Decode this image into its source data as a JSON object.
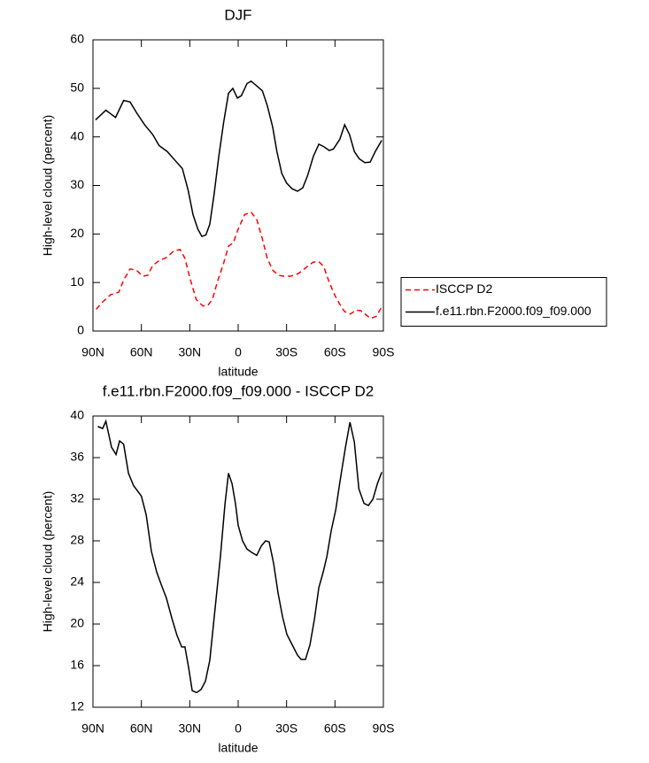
{
  "chart_data": [
    {
      "type": "line",
      "title": "DJF",
      "xlabel": "latitude",
      "ylabel": "High-level cloud (percent)",
      "xlim": [
        90,
        -90
      ],
      "ylim": [
        0,
        60
      ],
      "xticks": [
        {
          "value": 90,
          "label": "90N"
        },
        {
          "value": 60,
          "label": "60N"
        },
        {
          "value": 30,
          "label": "30N"
        },
        0,
        {
          "value": -30,
          "label": "30S"
        },
        {
          "value": -60,
          "label": "60S"
        },
        {
          "value": -90,
          "label": "90S"
        }
      ],
      "yticks": [
        0,
        10,
        20,
        30,
        40,
        50,
        60
      ],
      "legend": "right",
      "series": [
        {
          "name": "ISCCP D2",
          "color": "#ff0000",
          "style": "dashed",
          "x": [
            88,
            84,
            79,
            74,
            71,
            67,
            63,
            59,
            56,
            53,
            49,
            44,
            40,
            36,
            33,
            30,
            26,
            22,
            19,
            16,
            13,
            9,
            6,
            3,
            0,
            -4,
            -8,
            -11.5,
            -15,
            -18,
            -21.5,
            -25,
            -28,
            -32.5,
            -37,
            -40,
            -43.5,
            -46.6,
            -50,
            -53,
            -56.5,
            -60,
            -63,
            -66,
            -69.5,
            -73,
            -76,
            -79,
            -82,
            -85.5,
            -89
          ],
          "values": [
            4.5,
            6,
            7.5,
            8,
            10.5,
            12.8,
            12.5,
            11.3,
            11.5,
            13.5,
            14.5,
            15.2,
            16.5,
            16.8,
            15,
            11,
            6.5,
            5.2,
            5.2,
            6.5,
            10,
            14,
            17.5,
            18.2,
            21,
            24,
            24.5,
            23,
            19,
            15,
            12.5,
            11.5,
            11.3,
            11.3,
            11.8,
            12.5,
            13.5,
            14.2,
            14.3,
            13.3,
            10,
            7.3,
            5.5,
            4,
            3.5,
            4.3,
            4.2,
            3.4,
            2.6,
            3,
            5
          ]
        },
        {
          "name": "f.e11.rbn.F2000.f09_f09.000",
          "color": "#000000",
          "style": "solid",
          "x": [
            88.4,
            82,
            76,
            71,
            67,
            63,
            58,
            53,
            49,
            44,
            39.5,
            34.6,
            31,
            28,
            25,
            22.5,
            20,
            17.6,
            15,
            12,
            9,
            6,
            3.3,
            0.5,
            -2,
            -5.5,
            -8,
            -11.5,
            -15,
            -18,
            -21.4,
            -24,
            -27,
            -30,
            -33.5,
            -36.8,
            -40,
            -43,
            -46.6,
            -50,
            -53,
            -56.5,
            -59,
            -63,
            -66,
            -69,
            -72,
            -75,
            -78.5,
            -81.8,
            -85,
            -89
          ],
          "values": [
            43.5,
            45.5,
            44,
            47.5,
            47.2,
            45,
            42.5,
            40.5,
            38.2,
            37,
            35.3,
            33.5,
            29,
            24,
            21,
            19.5,
            19.8,
            22,
            28,
            36,
            43,
            49,
            50,
            48,
            48.5,
            51,
            51.5,
            50.5,
            49.5,
            46.5,
            42,
            37,
            32.5,
            30.5,
            29.3,
            28.8,
            29.5,
            32,
            36,
            38.5,
            38,
            37.2,
            37.5,
            39.5,
            42.5,
            40.5,
            37,
            35.5,
            34.7,
            34.8,
            37,
            39.3
          ]
        }
      ]
    },
    {
      "type": "line",
      "title": "f.e11.rbn.F2000.f09_f09.000 - ISCCP D2",
      "xlabel": "latitude",
      "ylabel": "High-level cloud (percent)",
      "xlim": [
        90,
        -90
      ],
      "ylim": [
        12,
        40
      ],
      "xticks": [
        {
          "value": 90,
          "label": "90N"
        },
        {
          "value": 60,
          "label": "60N"
        },
        {
          "value": 30,
          "label": "30N"
        },
        0,
        {
          "value": -30,
          "label": "30S"
        },
        {
          "value": -60,
          "label": "60S"
        },
        {
          "value": -90,
          "label": "90S"
        }
      ],
      "yticks": [
        12,
        16,
        20,
        24,
        28,
        32,
        36,
        40
      ],
      "series": [
        {
          "color": "#000000",
          "style": "solid",
          "x": [
            87,
            84,
            82,
            78.5,
            75.7,
            73.5,
            71,
            68,
            64.8,
            60,
            57,
            53.8,
            50.5,
            47.7,
            44.5,
            41,
            37.9,
            35,
            33,
            30.7,
            28.5,
            25.8,
            23,
            20.3,
            17.6,
            14.3,
            11,
            8.2,
            6,
            3.8,
            1.6,
            0,
            -2.7,
            -5.5,
            -8.2,
            -11.5,
            -14.3,
            -17,
            -19.2,
            -22,
            -24.7,
            -27.5,
            -30.2,
            -33.5,
            -36.8,
            -39,
            -41.7,
            -44.5,
            -47.3,
            -50,
            -52.7,
            -55,
            -57.7,
            -60.5,
            -63.2,
            -66.5,
            -69.3,
            -72,
            -74.8,
            -78,
            -80.7,
            -83.5,
            -86.3,
            -89
          ],
          "values": [
            39,
            38.8,
            39.5,
            37,
            36.3,
            37.6,
            37.3,
            34.5,
            33.3,
            32.3,
            30.5,
            27,
            25,
            23.8,
            22.5,
            20.5,
            18.9,
            17.8,
            17.8,
            15.8,
            13.6,
            13.4,
            13.7,
            14.5,
            16.5,
            21.5,
            26.5,
            31.5,
            34.5,
            33.5,
            31.5,
            29.5,
            28,
            27.2,
            26.9,
            26.6,
            27.5,
            28,
            27.9,
            25.8,
            23,
            20.7,
            19,
            18,
            17,
            16.6,
            16.6,
            18,
            20.5,
            23.5,
            25,
            26.5,
            29,
            31,
            33.8,
            37,
            39.4,
            37.5,
            33,
            31.6,
            31.4,
            32,
            33.5,
            34.6
          ]
        }
      ]
    }
  ]
}
